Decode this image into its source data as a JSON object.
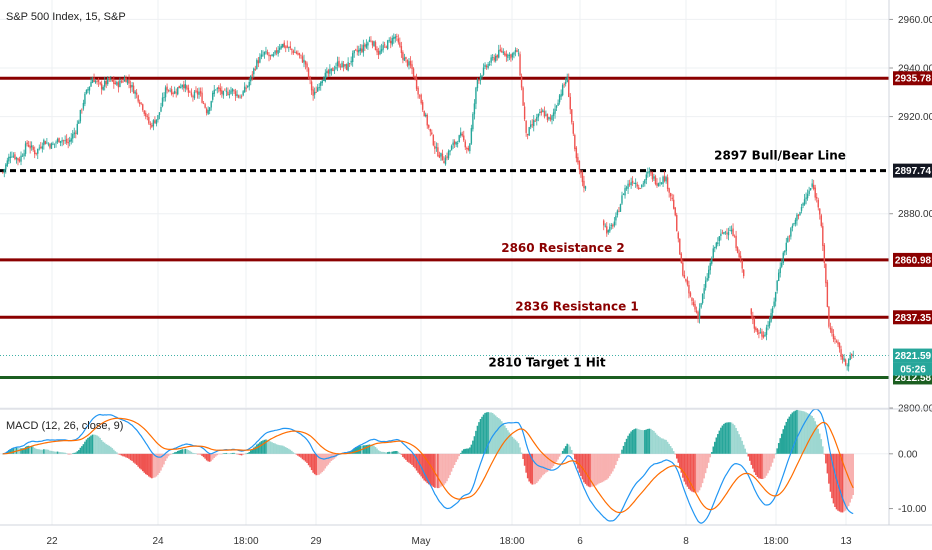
{
  "chart_data": {
    "type": "candlestick",
    "title": "S&P 500 Index, 15, S&P",
    "xlabel": "",
    "ylabel": "",
    "x_ticks": [
      "22",
      "24",
      "18:00",
      "29",
      "May",
      "18:00",
      "6",
      "8",
      "18:00",
      "13"
    ],
    "y_ticks": [
      "2960.00",
      "2940.00",
      "2920.00",
      "2880.00",
      "2800.00"
    ],
    "ylim": [
      2800,
      2968
    ],
    "price_path": [
      2897,
      2905,
      2902,
      2909,
      2905,
      2910,
      2908,
      2911,
      2909,
      2915,
      2928,
      2936,
      2932,
      2935,
      2933,
      2936,
      2931,
      2925,
      2916,
      2920,
      2932,
      2930,
      2934,
      2928,
      2930,
      2922,
      2932,
      2929,
      2931,
      2928,
      2933,
      2942,
      2946,
      2944,
      2950,
      2948,
      2946,
      2942,
      2928,
      2936,
      2938,
      2942,
      2940,
      2946,
      2948,
      2952,
      2946,
      2950,
      2953,
      2944,
      2940,
      2928,
      2916,
      2906,
      2902,
      2908,
      2912,
      2906,
      2935,
      2940,
      2944,
      2947,
      2945,
      2947,
      2912,
      2918,
      2922,
      2918,
      2928,
      2936,
      2904,
      2892,
      2886,
      2880,
      2872,
      2878,
      2890,
      2894,
      2891,
      2897,
      2893,
      2895,
      2884,
      2858,
      2846,
      2838,
      2852,
      2866,
      2872,
      2874,
      2864,
      2848,
      2832,
      2830,
      2838,
      2858,
      2870,
      2878,
      2885,
      2892,
      2880,
      2834,
      2826,
      2818,
      2822
    ],
    "levels": [
      {
        "label": "",
        "value": 2935.78,
        "tag": "2935.78",
        "color": "#8b0000",
        "style": "solid"
      },
      {
        "label": "2897 Bull/Bear Line",
        "value": 2897.74,
        "tag": "2897.74",
        "color": "#000000",
        "style": "dashed"
      },
      {
        "label": "2860 Resistance 2",
        "value": 2860.98,
        "tag": "2860.98",
        "color": "#8b0000",
        "style": "solid"
      },
      {
        "label": "2836 Resistance 1",
        "value": 2837.35,
        "tag": "2837.35",
        "color": "#8b0000",
        "style": "solid"
      },
      {
        "label": "2810 Target 1 Hit",
        "value": 2812.58,
        "tag": "2812.58",
        "color": "#1b5e20",
        "style": "solid"
      }
    ],
    "current_price": {
      "value": 2821.59,
      "tag": "2821.59",
      "countdown": "05:26",
      "color": "#26a69a"
    },
    "macd": {
      "title": "MACD (12, 26, close, 9)",
      "y_ticks": [
        "0.00",
        "-10.00"
      ],
      "ylim": [
        -13,
        8
      ],
      "macd_color": "#2196f3",
      "signal_color": "#ff6d00",
      "hist_up_color": "#26a69a",
      "hist_down_color": "#ef5350"
    },
    "colors": {
      "up": "#26a69a",
      "down": "#ef5350",
      "grid": "#eef0f3",
      "axis": "#d1d4dc"
    }
  }
}
